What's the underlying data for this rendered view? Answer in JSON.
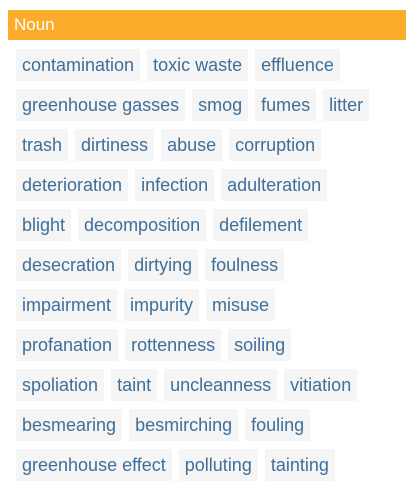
{
  "section": {
    "part_of_speech": "Noun"
  },
  "rows": [
    [
      "contamination",
      "toxic waste",
      "effluence"
    ],
    [
      "greenhouse gasses",
      "smog",
      "fumes",
      "litter"
    ],
    [
      "trash",
      "dirtiness",
      "abuse",
      "corruption"
    ],
    [
      "deterioration",
      "infection",
      "adulteration"
    ],
    [
      "blight",
      "decomposition",
      "defilement"
    ],
    [
      "desecration",
      "dirtying",
      "foulness"
    ],
    [
      "impairment",
      "impurity",
      "misuse"
    ],
    [
      "profanation",
      "rottenness",
      "soiling"
    ],
    [
      "spoliation",
      "taint",
      "uncleanness",
      "vitiation"
    ],
    [
      "besmearing",
      "besmirching",
      "fouling"
    ],
    [
      "greenhouse effect",
      "polluting",
      "tainting"
    ]
  ],
  "colors": {
    "header_bg": "#fbac2a",
    "chip_bg": "#f5f5f5",
    "chip_text": "#3e6f9a"
  }
}
